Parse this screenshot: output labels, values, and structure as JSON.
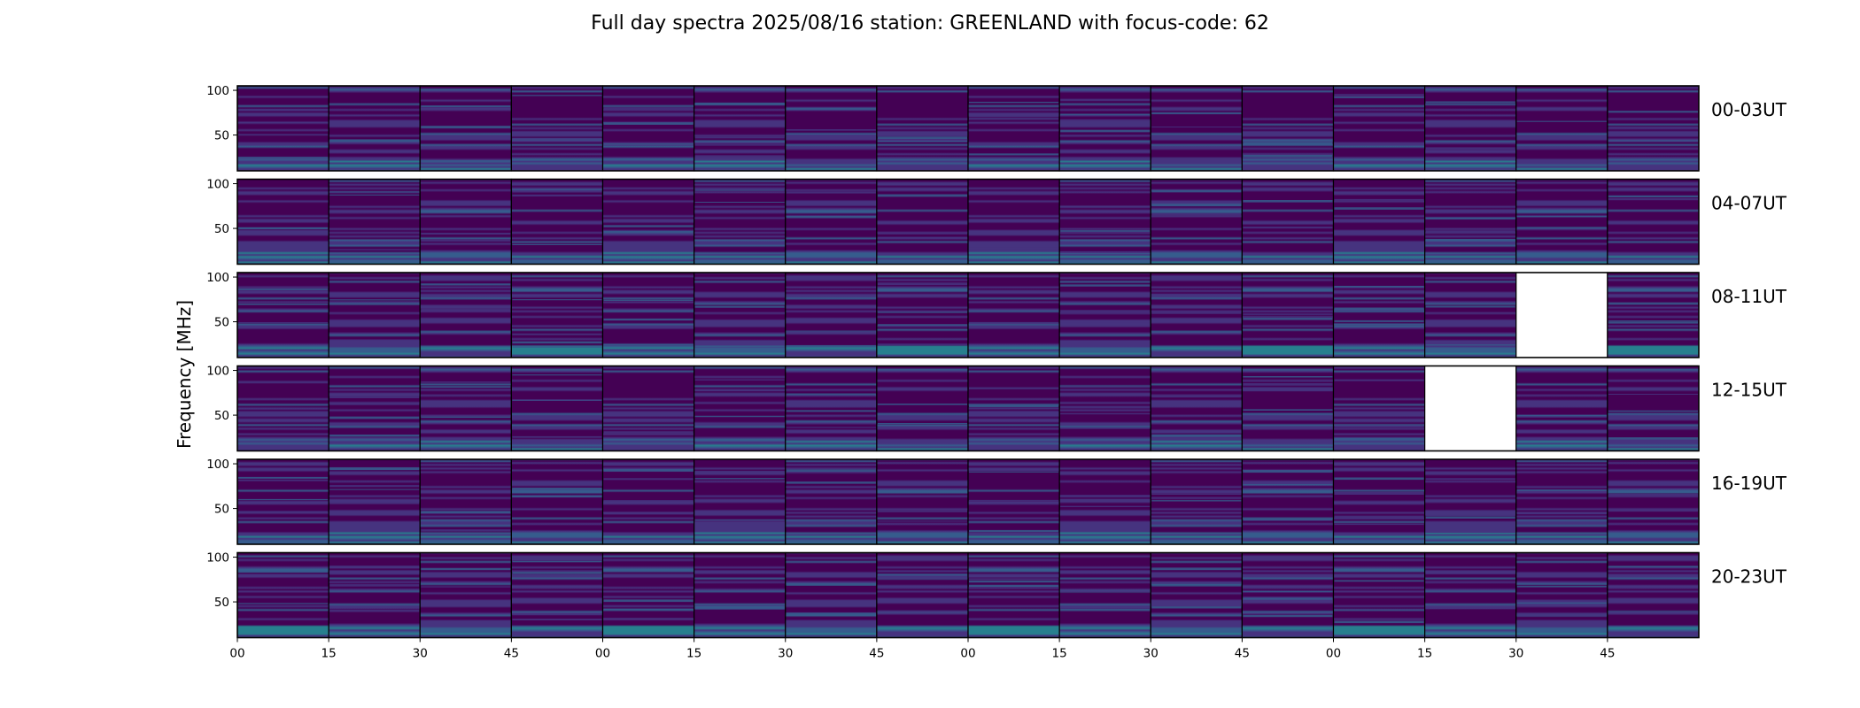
{
  "chart_data": {
    "type": "heatmap",
    "title": "Full day spectra 2025/08/16 station: GREENLAND with focus-code: 62",
    "xlabel": "",
    "ylabel": "Frequency [MHz]",
    "ylim": [
      10,
      105
    ],
    "y_ticks": [
      50,
      100
    ],
    "x_tick_labels": [
      "00",
      "15",
      "30",
      "45",
      "00",
      "15",
      "30",
      "45",
      "00",
      "15",
      "30",
      "45",
      "00",
      "15",
      "30",
      "45"
    ],
    "panels_per_row": 16,
    "panel_duration_minutes": 15,
    "colormap": [
      "#440154",
      "#46337f",
      "#365c8d",
      "#277f8e",
      "#1fa187",
      "#4ac16d"
    ],
    "missing_color": "#ffffff",
    "rows": [
      {
        "label": "00-03UT",
        "missing_panels": []
      },
      {
        "label": "04-07UT",
        "missing_panels": []
      },
      {
        "label": "08-11UT",
        "missing_panels": [
          14
        ]
      },
      {
        "label": "12-15UT",
        "missing_panels": [
          13
        ]
      },
      {
        "label": "16-19UT",
        "missing_panels": []
      },
      {
        "label": "20-23UT",
        "missing_panels": []
      }
    ]
  }
}
